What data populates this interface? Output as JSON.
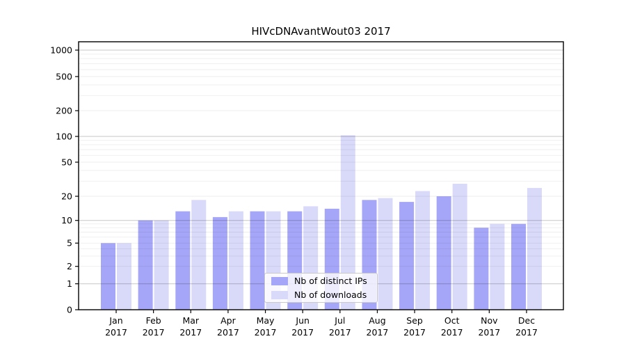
{
  "chart_data": {
    "type": "bar",
    "title": "HIVcDNAvantWout03 2017",
    "categories": [
      "Jan 2017",
      "Feb 2017",
      "Mar 2017",
      "Apr 2017",
      "May 2017",
      "Jun 2017",
      "Jul 2017",
      "Aug 2017",
      "Sep 2017",
      "Oct 2017",
      "Nov 2017",
      "Dec 2017"
    ],
    "series": [
      {
        "name": "Nb of distinct IPs",
        "color": "#a6a6f8",
        "values": [
          5,
          10,
          13,
          11,
          13,
          13,
          14,
          18,
          17,
          20,
          8,
          9
        ]
      },
      {
        "name": "Nb of downloads",
        "color": "#d9d9fa",
        "values": [
          5,
          10,
          18,
          13,
          13,
          15,
          103,
          19,
          23,
          28,
          9,
          25
        ]
      }
    ],
    "xlabel": "",
    "ylabel": "",
    "yscale": "symlog",
    "yticks": [
      0,
      1,
      2,
      5,
      10,
      20,
      50,
      100,
      200,
      500,
      1000
    ],
    "ylim": [
      0,
      1250
    ],
    "grid": true,
    "legend_position": "lower center",
    "colors": {
      "bar_dark": "#a6a6f8",
      "bar_light": "#d9d9fa",
      "grid_major": "rgba(0,0,0,0.22)",
      "grid_minor": "rgba(0,0,0,0.07)",
      "spine": "#000000",
      "text": "#000000"
    }
  }
}
